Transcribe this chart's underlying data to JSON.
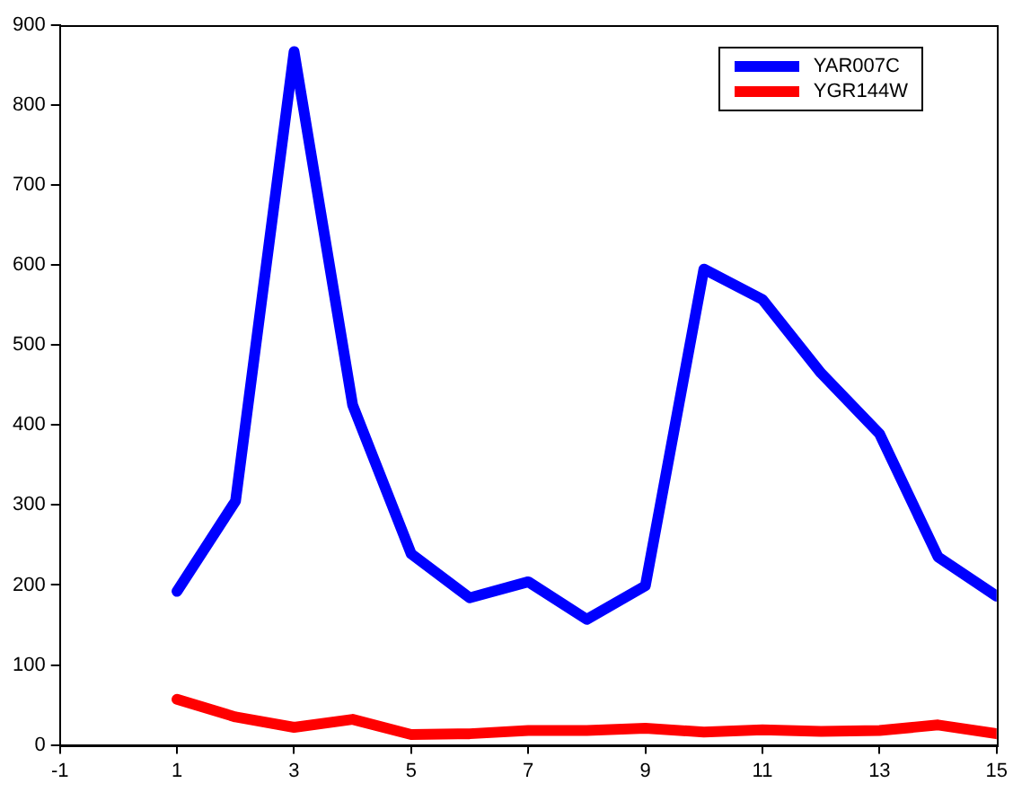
{
  "chart_data": {
    "type": "line",
    "x": [
      1,
      2,
      3,
      4,
      5,
      6,
      7,
      8,
      9,
      10,
      11,
      12,
      13,
      14,
      15
    ],
    "series": [
      {
        "name": "YAR007C",
        "color": "#0000ff",
        "values": [
          192,
          305,
          867,
          425,
          239,
          184,
          204,
          157,
          199,
          595,
          557,
          465,
          389,
          235,
          186
        ]
      },
      {
        "name": "YGR144W",
        "color": "#ff0000",
        "values": [
          57,
          35,
          22,
          32,
          13,
          14,
          18,
          18,
          21,
          16,
          19,
          17,
          18,
          25,
          14
        ]
      }
    ],
    "xlim": [
      -1,
      15
    ],
    "xticks": [
      -1,
      1,
      3,
      5,
      7,
      9,
      11,
      13,
      15
    ],
    "ylim": [
      0,
      900
    ],
    "yticks": [
      0,
      100,
      200,
      300,
      400,
      500,
      600,
      700,
      800,
      900
    ],
    "grid": false,
    "legend": "top right",
    "marker": "none",
    "line_style": "solid"
  }
}
